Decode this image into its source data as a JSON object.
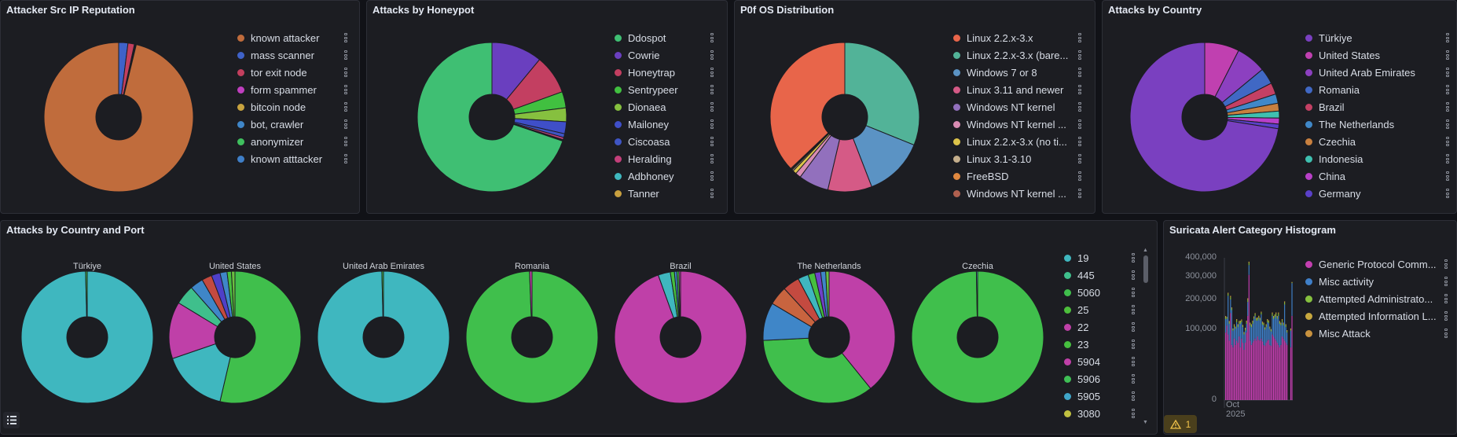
{
  "panels": {
    "reputation": {
      "title": "Attacker Src IP Reputation",
      "items": [
        {
          "label": "known attacker",
          "color": "#c06c3c",
          "value": 96.2
        },
        {
          "label": "mass scanner",
          "color": "#3f62c8",
          "value": 2.0
        },
        {
          "label": "tor exit node",
          "color": "#c33f5e",
          "value": 1.4
        },
        {
          "label": "form spammer",
          "color": "#c03fbf",
          "value": 0.1
        },
        {
          "label": "bitcoin node",
          "color": "#c8a33f",
          "value": 0.1
        },
        {
          "label": "bot, crawler",
          "color": "#3f86c8",
          "value": 0.1
        },
        {
          "label": "anonymizer",
          "color": "#3fbf5e",
          "value": 0.05
        },
        {
          "label": "known atttacker",
          "color": "#3f7fc8",
          "value": 0.05
        }
      ]
    },
    "honeypot": {
      "title": "Attacks by Honeypot",
      "items": [
        {
          "label": "Ddospot",
          "color": "#3fbf73",
          "value": 69.8
        },
        {
          "label": "Cowrie",
          "color": "#6a3fbf",
          "value": 11
        },
        {
          "label": "Honeytrap",
          "color": "#c33f61",
          "value": 8.5
        },
        {
          "label": "Sentrypeer",
          "color": "#41c040",
          "value": 3.5
        },
        {
          "label": "Dionaea",
          "color": "#86c03f",
          "value": 3
        },
        {
          "label": "Mailoney",
          "color": "#3f4fc8",
          "value": 2.6
        },
        {
          "label": "Ciscoasa",
          "color": "#3f55c4",
          "value": 0.8
        },
        {
          "label": "Heralding",
          "color": "#c33f7a",
          "value": 0.5
        },
        {
          "label": "Adbhoney",
          "color": "#3fb8bf",
          "value": 0.15
        },
        {
          "label": "Tanner",
          "color": "#c8a03f",
          "value": 0.15
        }
      ]
    },
    "p0f": {
      "title": "P0f OS Distribution",
      "items": [
        {
          "label": "Linux 2.2.x-3.x",
          "color": "#e8654a",
          "value": 37
        },
        {
          "label": "Linux 2.2.x-3.x (bare...",
          "color": "#52b398",
          "value": 31
        },
        {
          "label": "Windows 7 or 8",
          "color": "#5b93c4",
          "value": 13
        },
        {
          "label": "Linux 3.11 and newer",
          "color": "#d55a86",
          "value": 9.5
        },
        {
          "label": "Windows NT kernel",
          "color": "#9270bd",
          "value": 6.5
        },
        {
          "label": "Windows NT kernel ...",
          "color": "#d98cb3",
          "value": 1.2
        },
        {
          "label": "Linux 2.2.x-3.x (no ti...",
          "color": "#dcc34a",
          "value": 0.8
        },
        {
          "label": "Linux 3.1-3.10",
          "color": "#c4ae8c",
          "value": 0.3
        },
        {
          "label": "FreeBSD",
          "color": "#e0883f",
          "value": 0.2
        },
        {
          "label": "Windows NT kernel ...",
          "color": "#b0604f",
          "value": 0.2
        }
      ]
    },
    "country": {
      "title": "Attacks by Country",
      "items": [
        {
          "label": "Türkiye",
          "color": "#7a40c0",
          "value": 72.5
        },
        {
          "label": "United States",
          "color": "#c040b0",
          "value": 7.5
        },
        {
          "label": "United Arab Emirates",
          "color": "#8c40c0",
          "value": 6.5
        },
        {
          "label": "Romania",
          "color": "#4068c4",
          "value": 3.5
        },
        {
          "label": "Brazil",
          "color": "#c44064",
          "value": 2.5
        },
        {
          "label": "The Netherlands",
          "color": "#4088c8",
          "value": 2
        },
        {
          "label": "Czechia",
          "color": "#c8803f",
          "value": 1.7
        },
        {
          "label": "Indonesia",
          "color": "#3fc0b0",
          "value": 1.5
        },
        {
          "label": "China",
          "color": "#b840c8",
          "value": 1.3
        },
        {
          "label": "Germany",
          "color": "#5a40c8",
          "value": 1
        }
      ]
    },
    "country_port": {
      "title": "Attacks by Country and Port",
      "legend": [
        {
          "label": "19",
          "color": "#3fb7bf"
        },
        {
          "label": "445",
          "color": "#3fbf8c"
        },
        {
          "label": "5060",
          "color": "#40bf4c"
        },
        {
          "label": "25",
          "color": "#4dbf3c"
        },
        {
          "label": "22",
          "color": "#bf40a8"
        },
        {
          "label": "23",
          "color": "#46bf3f"
        },
        {
          "label": "5904",
          "color": "#c040a8"
        },
        {
          "label": "5906",
          "color": "#3fbf55"
        },
        {
          "label": "5905",
          "color": "#3fa5c8"
        },
        {
          "label": "3080",
          "color": "#c0c040"
        }
      ],
      "countries": [
        {
          "name": "Türkiye",
          "slices": [
            {
              "color": "#3fb7bf",
              "value": 99.6
            },
            {
              "color": "#40bf4c",
              "value": 0.4
            }
          ]
        },
        {
          "name": "United States",
          "slices": [
            {
              "color": "#40bf4c",
              "value": 50
            },
            {
              "color": "#3fb7bf",
              "value": 15
            },
            {
              "color": "#bf40a8",
              "value": 13
            },
            {
              "color": "#3fbf8c",
              "value": 4.5
            },
            {
              "color": "#3f86c8",
              "value": 3
            },
            {
              "color": "#c44a40",
              "value": 2.3
            },
            {
              "color": "#4f40c8",
              "value": 2
            },
            {
              "color": "#3f86c8",
              "value": 1.6
            },
            {
              "color": "#46bf3f",
              "value": 1
            },
            {
              "color": "#6ac040",
              "value": 0.8
            }
          ]
        },
        {
          "name": "United Arab Emirates",
          "slices": [
            {
              "color": "#3fb7bf",
              "value": 99.6
            },
            {
              "color": "#40bf4c",
              "value": 0.4
            }
          ]
        },
        {
          "name": "Romania",
          "slices": [
            {
              "color": "#40bf4c",
              "value": 99.4
            },
            {
              "color": "#bf40a8",
              "value": 0.6
            }
          ]
        },
        {
          "name": "Brazil",
          "slices": [
            {
              "color": "#bf40a8",
              "value": 94.5
            },
            {
              "color": "#3fb7bf",
              "value": 3
            },
            {
              "color": "#46bf3f",
              "value": 1
            },
            {
              "color": "#3f86c8",
              "value": 0.6
            },
            {
              "color": "#40bf4c",
              "value": 0.5
            },
            {
              "color": "#c040a8",
              "value": 0.4
            }
          ]
        },
        {
          "name": "The Netherlands",
          "slices": [
            {
              "color": "#bf40a8",
              "value": 38
            },
            {
              "color": "#40bf4c",
              "value": 34
            },
            {
              "color": "#3f86c8",
              "value": 9
            },
            {
              "color": "#c8643f",
              "value": 4.5
            },
            {
              "color": "#c44a40",
              "value": 4
            },
            {
              "color": "#3fb7bf",
              "value": 2.5
            },
            {
              "color": "#46bf3f",
              "value": 1.6
            },
            {
              "color": "#7040c8",
              "value": 1.4
            },
            {
              "color": "#3f86c8",
              "value": 1.2
            },
            {
              "color": "#6ac040",
              "value": 0.8
            }
          ]
        },
        {
          "name": "Czechia",
          "slices": [
            {
              "color": "#40bf4c",
              "value": 99.7
            },
            {
              "color": "#3fb7bf",
              "value": 0.3
            }
          ]
        }
      ]
    },
    "suricata": {
      "title": "Suricata Alert Category Histogram",
      "y_ticks": [
        "400,000",
        "300,000",
        "200,000",
        "100,000",
        "0"
      ],
      "y_tick_values": [
        400000,
        300000,
        200000,
        100000,
        0
      ],
      "y_max": 400000,
      "y_scale": "sqrt",
      "x_label_month": "Oct",
      "x_label_year": "2025",
      "warning_count": "1",
      "legend": [
        {
          "label": "Generic Protocol Comm...",
          "color": "#c33fb0"
        },
        {
          "label": "Misc activity",
          "color": "#3f7fc8"
        },
        {
          "label": "Attempted Administrato...",
          "color": "#86c03f"
        },
        {
          "label": "Attempted Information L...",
          "color": "#c8a83f"
        },
        {
          "label": "Misc Attack",
          "color": "#c8923f"
        }
      ],
      "series_thousands": [
        [
          90,
          110,
          85,
          70,
          150,
          60,
          55,
          75,
          60,
          70,
          65,
          80,
          55,
          75,
          65,
          50,
          65,
          90,
          140,
          310,
          70,
          60,
          65,
          70,
          75,
          70,
          80,
          72,
          70,
          75,
          68,
          60,
          58,
          65,
          70,
          72,
          60,
          58,
          85,
          80,
          75,
          70,
          65,
          60,
          55,
          60,
          80,
          75,
          70,
          65,
          60,
          0,
          0,
          55,
          140
        ],
        [
          40,
          20,
          130,
          45,
          50,
          100,
          40,
          30,
          40,
          50,
          40,
          35,
          60,
          45,
          40,
          35,
          30,
          25,
          50,
          50,
          40,
          45,
          50,
          60,
          65,
          55,
          45,
          60,
          55,
          70,
          45,
          50,
          40,
          40,
          50,
          45,
          40,
          35,
          55,
          50,
          60,
          70,
          65,
          80,
          60,
          50,
          40,
          35,
          110,
          40,
          30,
          0,
          0,
          40,
          130
        ],
        [
          6,
          4,
          8,
          5,
          9,
          6,
          4,
          5,
          4,
          6,
          5,
          5,
          6,
          5,
          4,
          4,
          5,
          6,
          9,
          12,
          5,
          5,
          6,
          5,
          6,
          5,
          6,
          5,
          5,
          6,
          5,
          5,
          4,
          5,
          6,
          5,
          4,
          4,
          7,
          6,
          6,
          7,
          6,
          7,
          5,
          5,
          6,
          5,
          8,
          5,
          4,
          0,
          0,
          4,
          3
        ],
        [
          3,
          2,
          4,
          3,
          5,
          3,
          2,
          3,
          2,
          3,
          3,
          3,
          3,
          3,
          2,
          2,
          3,
          3,
          5,
          6,
          3,
          3,
          3,
          3,
          3,
          3,
          3,
          3,
          3,
          3,
          3,
          3,
          2,
          3,
          3,
          3,
          2,
          2,
          4,
          3,
          3,
          4,
          3,
          4,
          3,
          3,
          3,
          3,
          4,
          3,
          2,
          0,
          0,
          2,
          2
        ],
        [
          0.5,
          0.5,
          0.5,
          0.5,
          0.5,
          0.5,
          0.5,
          0.5,
          0.5,
          0.5,
          0.5,
          0.5,
          0.5,
          0.5,
          0.5,
          0.5,
          0.5,
          0.5,
          0.5,
          0.5,
          0.5,
          0.5,
          0.5,
          0.5,
          0.5,
          0.5,
          0.5,
          0.5,
          0.5,
          0.5,
          0.5,
          0.5,
          0.5,
          0.5,
          0.5,
          0.5,
          0.5,
          0.5,
          0.5,
          0.5,
          0.5,
          0.5,
          0.5,
          0.5,
          0.5,
          0.5,
          0.5,
          0.5,
          0.5,
          0.5,
          0.5,
          0,
          0,
          0.5,
          0.5
        ]
      ]
    }
  }
}
